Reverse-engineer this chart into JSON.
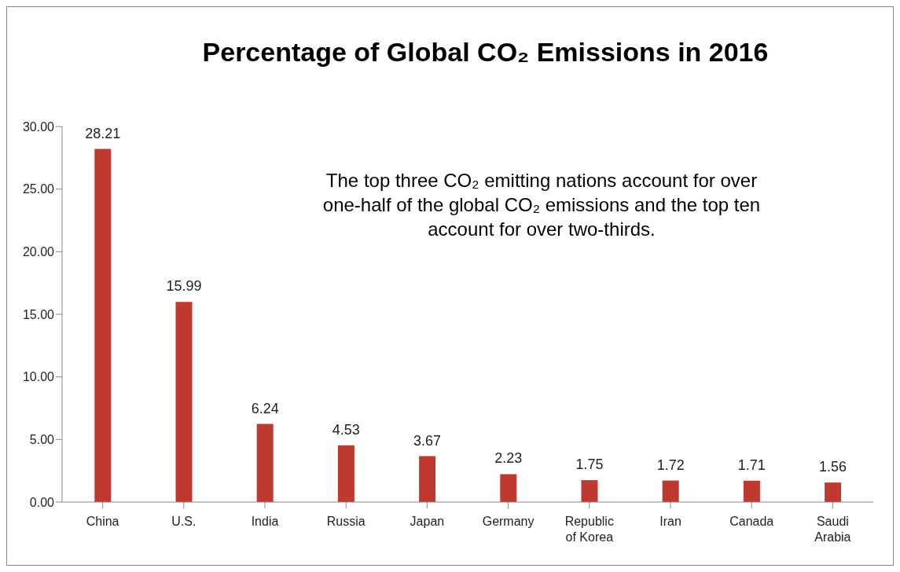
{
  "chart_data": {
    "type": "bar",
    "title": "Percentage of Global CO₂ Emissions in 2016",
    "categories": [
      "China",
      "U.S.",
      "India",
      "Russia",
      "Japan",
      "Germany",
      "Republic of Korea",
      "Iran",
      "Canada",
      "Saudi Arabia"
    ],
    "values": [
      28.21,
      15.99,
      6.24,
      4.53,
      3.67,
      2.23,
      1.75,
      1.72,
      1.71,
      1.56
    ],
    "color": "#c0392e",
    "ylim": [
      0,
      30
    ],
    "yticks": [
      {
        "value": 0,
        "label": "0.00"
      },
      {
        "value": 5,
        "label": "5.00"
      },
      {
        "value": 10,
        "label": "10.00"
      },
      {
        "value": 15,
        "label": "15.00"
      },
      {
        "value": 20,
        "label": "20.00"
      },
      {
        "value": 25,
        "label": "25.00"
      },
      {
        "value": 30,
        "label": "30.00"
      }
    ],
    "annotations": [
      "The top three CO₂ emitting nations account for over one-half of the global CO₂ emissions and the top ten account for over two-thirds."
    ],
    "data_labels": true,
    "grid": false,
    "legend": false
  }
}
